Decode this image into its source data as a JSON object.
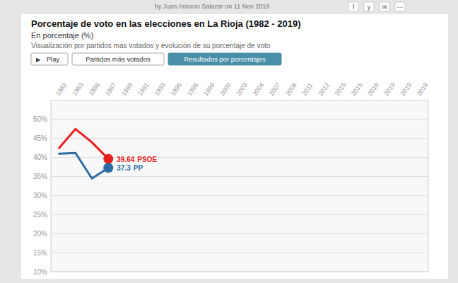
{
  "chart_data": {
    "type": "line",
    "title": "Porcentaje de voto en las elecciones en La Rioja (1982 - 2019)",
    "subtitle": "En porcentaje (%)",
    "description": "Visualización por partidos más votados y evolución de su porcentaje de voto",
    "byline": "by Juan Antonio Salazar on 11 Nov 2019",
    "icons": [
      "f",
      "y",
      "✉",
      "⋯"
    ],
    "play_icon": "▶",
    "buttons": [
      "Play",
      "Partidos más votados",
      "Resultados por porcentajes"
    ],
    "categories": [
      "1982",
      "1983",
      "1986",
      "1987",
      "1989",
      "1991",
      "1993",
      "1995",
      "1996",
      "1999",
      "2000",
      "2003",
      "2004",
      "2007",
      "2008",
      "2011",
      "2012",
      "2015",
      "2015",
      "2016",
      "2019",
      "2019",
      "2019"
    ],
    "series": [
      {
        "name": "PSOE",
        "color": "#e82020",
        "values": [
          42.5,
          47.5,
          44.0,
          39.64,
          null,
          null,
          null,
          null,
          null,
          null,
          null,
          null,
          null,
          null,
          null,
          null,
          null,
          null,
          null,
          null,
          null,
          null,
          null
        ]
      },
      {
        "name": "PP",
        "color": "#2e6da4",
        "values": [
          41.0,
          41.2,
          34.5,
          37.3,
          null,
          null,
          null,
          null,
          null,
          null,
          null,
          null,
          null,
          null,
          null,
          null,
          null,
          null,
          null,
          null,
          null,
          null,
          null
        ]
      }
    ],
    "ylim": [
      10,
      55
    ],
    "yticks": [
      {
        "value": 50,
        "label": "50%"
      },
      {
        "value": 45,
        "label": "45%"
      },
      {
        "value": 40,
        "label": "40%"
      },
      {
        "value": 35,
        "label": "35%"
      },
      {
        "value": 30,
        "label": "30%"
      },
      {
        "value": 25,
        "label": "25%"
      },
      {
        "value": 20,
        "label": "20%"
      },
      {
        "value": 15,
        "label": "15%"
      },
      {
        "value": 10,
        "label": "10%"
      }
    ],
    "grid": true
  }
}
